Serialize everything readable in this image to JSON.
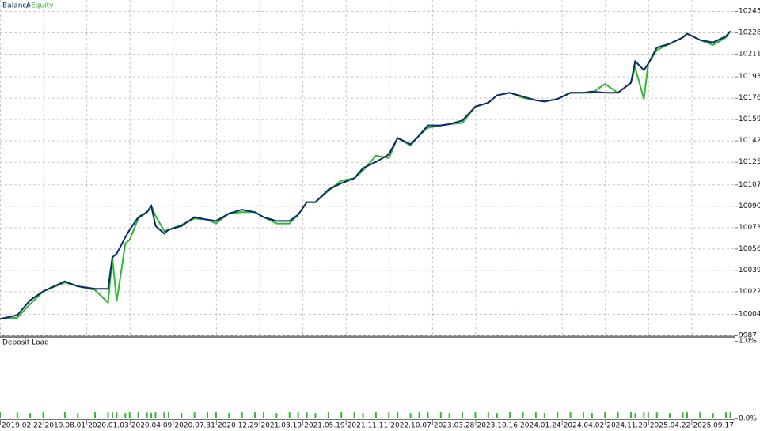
{
  "chart_data": [
    {
      "type": "line",
      "x": [
        0,
        4,
        7,
        10,
        15,
        18,
        22,
        25,
        26,
        27,
        29,
        30,
        32,
        34,
        35,
        36,
        38,
        39,
        42,
        45,
        48,
        50,
        53,
        56,
        59,
        61,
        64,
        67,
        69,
        71,
        73,
        76,
        79,
        82,
        84,
        87,
        90,
        92,
        95,
        97,
        99,
        102,
        104,
        107,
        110,
        113,
        115,
        118,
        121,
        124,
        126,
        129,
        132,
        135,
        137,
        140,
        143,
        146,
        147,
        149,
        150,
        152,
        155,
        158,
        159,
        162,
        165,
        168,
        169
      ],
      "series": [
        {
          "name": "Balance",
          "color": "#0b2a6b",
          "values": [
            10000,
            10003,
            10015,
            10022,
            10030,
            10026,
            10024,
            10024,
            10049,
            10052,
            10065,
            10071,
            10081,
            10085,
            10090,
            10074,
            10068,
            10071,
            10074,
            10081,
            10079,
            10078,
            10084,
            10087,
            10085,
            10081,
            10078,
            10078,
            10083,
            10093,
            10093,
            10103,
            10108,
            10112,
            10120,
            10125,
            10131,
            10144,
            10139,
            10146,
            10154,
            10154,
            10155,
            10158,
            10169,
            10172,
            10178,
            10180,
            10177,
            10174,
            10173,
            10175,
            10180,
            10180,
            10181,
            10180,
            10180,
            10188,
            10205,
            10198,
            10203,
            10216,
            10219,
            10224,
            10227,
            10222,
            10220,
            10225,
            10229
          ]
        },
        {
          "name": "Equity",
          "color": "#2eb82e",
          "values": [
            10000,
            10001,
            10012,
            10022,
            10029,
            10026,
            10023,
            10013,
            10049,
            10014,
            10060,
            10063,
            10080,
            10085,
            10090,
            10082,
            10070,
            10071,
            10075,
            10080,
            10079,
            10076,
            10084,
            10085,
            10085,
            10081,
            10076,
            10076,
            10083,
            10093,
            10093,
            10102,
            10110,
            10112,
            10118,
            10130,
            10128,
            10144,
            10138,
            10146,
            10152,
            10154,
            10155,
            10156,
            10169,
            10172,
            10178,
            10180,
            10176,
            10174,
            10173,
            10175,
            10180,
            10180,
            10180,
            10187,
            10180,
            10188,
            10200,
            10175,
            10203,
            10214,
            10219,
            10224,
            10227,
            10222,
            10218,
            10224,
            10229
          ]
        }
      ],
      "xlim": [
        0,
        170
      ],
      "ylim": [
        9987,
        10245
      ],
      "yticks": [
        9987,
        10004,
        10022,
        10039,
        10056,
        10073,
        10090,
        10107,
        10125,
        10142,
        10159,
        10176,
        10193,
        10211,
        10228,
        10245
      ],
      "grid": true
    },
    {
      "type": "bar",
      "title": "Deposit Load",
      "color": "#2eb82e",
      "x": [
        0,
        4,
        7,
        10,
        15,
        18,
        22,
        25,
        26,
        27,
        29,
        30,
        32,
        34,
        35,
        36,
        38,
        39,
        42,
        45,
        48,
        50,
        53,
        56,
        59,
        61,
        64,
        67,
        69,
        71,
        73,
        76,
        79,
        82,
        84,
        87,
        90,
        92,
        95,
        97,
        99,
        102,
        104,
        107,
        110,
        113,
        115,
        118,
        121,
        124,
        126,
        129,
        132,
        135,
        137,
        140,
        143,
        146,
        147,
        149,
        150,
        152,
        155,
        158,
        159,
        162,
        165,
        168,
        169
      ],
      "values": [
        0.08,
        0.08,
        0.07,
        0.08,
        0.08,
        0.07,
        0.08,
        0.08,
        0.08,
        0.08,
        0.07,
        0.08,
        0.08,
        0.08,
        0.07,
        0.08,
        0.08,
        0.08,
        0.07,
        0.08,
        0.08,
        0.08,
        0.07,
        0.08,
        0.08,
        0.08,
        0.07,
        0.08,
        0.08,
        0.08,
        0.07,
        0.08,
        0.08,
        0.08,
        0.07,
        0.08,
        0.08,
        0.08,
        0.07,
        0.08,
        0.08,
        0.08,
        0.07,
        0.08,
        0.08,
        0.08,
        0.07,
        0.08,
        0.08,
        0.08,
        0.07,
        0.08,
        0.08,
        0.08,
        0.07,
        0.08,
        0.08,
        0.08,
        0.07,
        0.08,
        0.08,
        0.08,
        0.07,
        0.08,
        0.08,
        0.08,
        0.07,
        0.08,
        0.08
      ],
      "xlim": [
        0,
        170
      ],
      "xticks": [
        {
          "value": 0,
          "label": "2019.02.22"
        },
        {
          "value": 10,
          "label": "2019.08.01"
        },
        {
          "value": 20,
          "label": "2020.01.03"
        },
        {
          "value": 30,
          "label": "2020.04.09"
        },
        {
          "value": 40,
          "label": "2020.07.31"
        },
        {
          "value": 50,
          "label": "2020.12.29"
        },
        {
          "value": 60,
          "label": "2021.03.19"
        },
        {
          "value": 70,
          "label": "2021.05.19"
        },
        {
          "value": 80,
          "label": "2021.11.11"
        },
        {
          "value": 90,
          "label": "2022.10.07"
        },
        {
          "value": 100,
          "label": "2023.03.28"
        },
        {
          "value": 110,
          "label": "2023.10.16"
        },
        {
          "value": 120,
          "label": "2024.01.24"
        },
        {
          "value": 130,
          "label": "2024.04.02"
        },
        {
          "value": 140,
          "label": "2024.11.20"
        },
        {
          "value": 150,
          "label": "2025.04.22"
        },
        {
          "value": 160,
          "label": "2025.09.17"
        }
      ],
      "ylim": [
        0,
        1
      ],
      "yticks": [
        {
          "value": 1,
          "label": "1.0%"
        },
        {
          "value": 0,
          "label": "0.0%"
        }
      ]
    }
  ]
}
